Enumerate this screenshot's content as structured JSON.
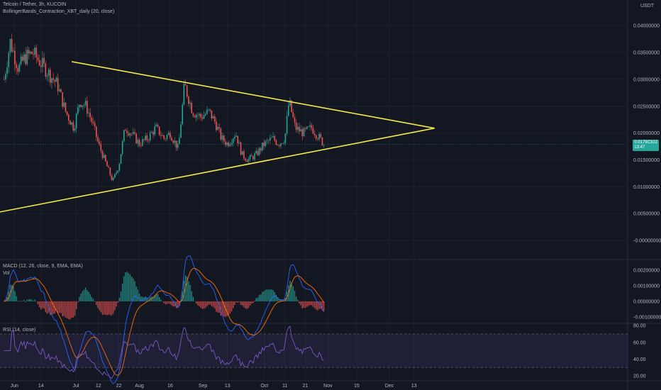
{
  "header": {
    "symbol": "Telcoin / Tether, 3h, KUCOIN",
    "indicator": "BollingerBands_Contraction_XBT_daily (20, close)",
    "currency": "USDT"
  },
  "price_tag": {
    "value": "0.0179C322",
    "sub": "13:47"
  },
  "panes": {
    "macd_label": "MACD (12, 26, close, 9, EMA, EMA)",
    "vol_label": "Vol",
    "rsi_label": "RSI (14, close)"
  },
  "colors": {
    "background": "#131722",
    "candle_up": "#26a69a",
    "candle_down": "#ef5350",
    "trendline": "#f5e94a",
    "macd": "#2962ff",
    "signal": "#ff6d00",
    "rsi": "#7e57c2"
  },
  "chart_data": [
    {
      "type": "candlestick",
      "title": "Telcoin / Tether, 3h, KUCOIN",
      "x_ticks": [
        "Jun",
        "14",
        "Jul",
        "12",
        "22",
        "Aug",
        "16",
        "Sep",
        "13",
        "Oct",
        "11",
        "21",
        "Nov",
        "15",
        "Dec",
        "13"
      ],
      "y_ticks": [
        "0.04000000",
        "0.03500000",
        "0.03000000",
        "0.02500000",
        "0.02000000",
        "0.01500000",
        "0.01000000",
        "0.00500000",
        "-0.00000000"
      ],
      "ylim": [
        0,
        0.04
      ],
      "close_path": [
        {
          "x": "May 27",
          "y": 0.03
        },
        {
          "x": "May 30",
          "y": 0.037
        },
        {
          "x": "Jun 3",
          "y": 0.032
        },
        {
          "x": "Jun 6",
          "y": 0.034
        },
        {
          "x": "Jun 10",
          "y": 0.035
        },
        {
          "x": "Jun 14",
          "y": 0.033
        },
        {
          "x": "Jun 18",
          "y": 0.031
        },
        {
          "x": "Jun 22",
          "y": 0.029
        },
        {
          "x": "Jun 26",
          "y": 0.024
        },
        {
          "x": "Jun 30",
          "y": 0.021
        },
        {
          "x": "Jul 3",
          "y": 0.026
        },
        {
          "x": "Jul 6",
          "y": 0.025
        },
        {
          "x": "Jul 9",
          "y": 0.022
        },
        {
          "x": "Jul 12",
          "y": 0.018
        },
        {
          "x": "Jul 15",
          "y": 0.015
        },
        {
          "x": "Jul 19",
          "y": 0.011
        },
        {
          "x": "Jul 22",
          "y": 0.014
        },
        {
          "x": "Jul 25",
          "y": 0.021
        },
        {
          "x": "Jul 28",
          "y": 0.02
        },
        {
          "x": "Aug 1",
          "y": 0.018
        },
        {
          "x": "Aug 5",
          "y": 0.019
        },
        {
          "x": "Aug 9",
          "y": 0.021
        },
        {
          "x": "Aug 13",
          "y": 0.019
        },
        {
          "x": "Aug 16",
          "y": 0.02
        },
        {
          "x": "Aug 20",
          "y": 0.017
        },
        {
          "x": "Aug 23",
          "y": 0.029
        },
        {
          "x": "Aug 27",
          "y": 0.024
        },
        {
          "x": "Aug 31",
          "y": 0.023
        },
        {
          "x": "Sep 4",
          "y": 0.024
        },
        {
          "x": "Sep 7",
          "y": 0.022
        },
        {
          "x": "Sep 10",
          "y": 0.019
        },
        {
          "x": "Sep 13",
          "y": 0.018
        },
        {
          "x": "Sep 17",
          "y": 0.02
        },
        {
          "x": "Sep 20",
          "y": 0.016
        },
        {
          "x": "Sep 23",
          "y": 0.015
        },
        {
          "x": "Sep 27",
          "y": 0.016
        },
        {
          "x": "Oct 1",
          "y": 0.018
        },
        {
          "x": "Oct 5",
          "y": 0.019
        },
        {
          "x": "Oct 8",
          "y": 0.018
        },
        {
          "x": "Oct 11",
          "y": 0.019
        },
        {
          "x": "Oct 13",
          "y": 0.026
        },
        {
          "x": "Oct 16",
          "y": 0.021
        },
        {
          "x": "Oct 20",
          "y": 0.02
        },
        {
          "x": "Oct 24",
          "y": 0.021
        },
        {
          "x": "Oct 28",
          "y": 0.019
        },
        {
          "x": "Oct 30",
          "y": 0.0179
        }
      ],
      "trendlines": [
        {
          "name": "upper",
          "from": {
            "x": "Jun 29",
            "y": 0.0333
          },
          "to": {
            "x": "Dec 23",
            "y": 0.0209
          }
        },
        {
          "name": "lower",
          "from": {
            "x": "May 25",
            "y": 0.0053
          },
          "to": {
            "x": "Dec 23",
            "y": 0.0209
          }
        }
      ],
      "current_price": 0.0179
    },
    {
      "type": "line",
      "title": "MACD (12, 26, close, 9, EMA, EMA)",
      "y_ticks": [
        "0.00200000",
        "0.00100000",
        "0.00000000",
        "-0.00100000"
      ],
      "ylim": [
        -0.0015,
        0.0024
      ]
    },
    {
      "type": "line",
      "title": "RSI (14, close)",
      "y_ticks": [
        "80.00",
        "60.00",
        "40.00",
        "20.00"
      ],
      "ylim": [
        20,
        85
      ],
      "bands": [
        70,
        30
      ]
    }
  ]
}
